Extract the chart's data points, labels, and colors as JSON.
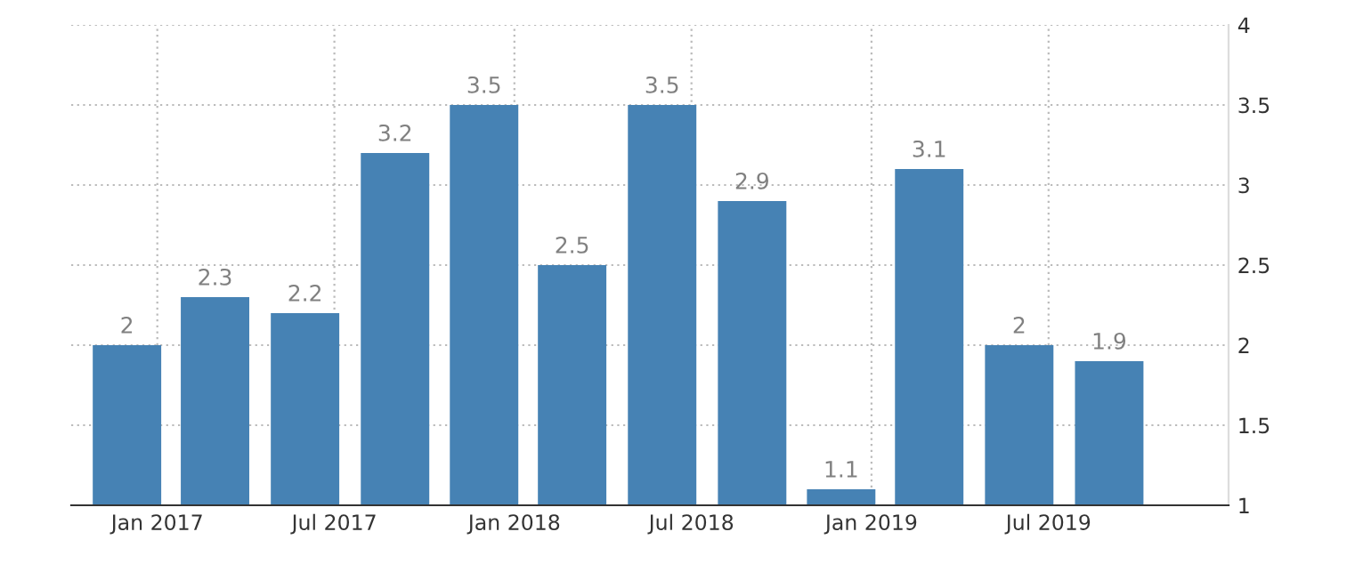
{
  "chart_data": {
    "type": "bar",
    "x": [
      "2016-12",
      "2017-03",
      "2017-06",
      "2017-09",
      "2017-12",
      "2018-03",
      "2018-06",
      "2018-09",
      "2018-12",
      "2019-03",
      "2019-06",
      "2019-09"
    ],
    "values": [
      2,
      2.3,
      2.2,
      3.2,
      3.5,
      2.5,
      3.5,
      2.9,
      1.1,
      3.1,
      2,
      1.9
    ],
    "color": "#4682b4",
    "data_labels": true,
    "xlim": [
      "2016-10-05",
      "2020-01-01"
    ],
    "xticks": [
      {
        "value": "2017-01",
        "label": "Jan 2017"
      },
      {
        "value": "2017-07",
        "label": "Jul 2017"
      },
      {
        "value": "2018-01",
        "label": "Jan 2018"
      },
      {
        "value": "2018-07",
        "label": "Jul 2018"
      },
      {
        "value": "2019-01",
        "label": "Jan 2019"
      },
      {
        "value": "2019-07",
        "label": "Jul 2019"
      }
    ],
    "ylim": [
      1,
      4
    ],
    "yticks": [
      1,
      1.5,
      2,
      2.5,
      3,
      3.5,
      4
    ],
    "grid": true
  }
}
